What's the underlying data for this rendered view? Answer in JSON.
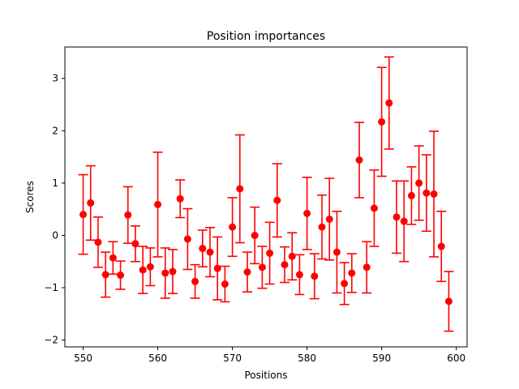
{
  "chart_data": {
    "type": "scatter",
    "title": "Position importances",
    "xlabel": "Positions",
    "ylabel": "Scores",
    "xlim": [
      547.55,
      601.45
    ],
    "ylim": [
      -2.13,
      3.6
    ],
    "x_ticks": [
      550,
      560,
      570,
      580,
      590,
      600
    ],
    "y_ticks": [
      -2,
      -1,
      0,
      1,
      2,
      3
    ],
    "x_tick_labels": [
      "550",
      "560",
      "570",
      "580",
      "590",
      "600"
    ],
    "y_tick_labels": [
      "−2",
      "−1",
      "0",
      "1",
      "2",
      "3"
    ],
    "grid": false,
    "legend": null,
    "marker_color": "#ff0000",
    "errorbar_color": "#ff0000",
    "points": [
      {
        "x": 550,
        "y": 0.4,
        "err": 0.76
      },
      {
        "x": 551,
        "y": 0.62,
        "err": 0.71
      },
      {
        "x": 552,
        "y": -0.13,
        "err": 0.48
      },
      {
        "x": 553,
        "y": -0.75,
        "err": 0.43
      },
      {
        "x": 554,
        "y": -0.43,
        "err": 0.31
      },
      {
        "x": 555,
        "y": -0.76,
        "err": 0.27
      },
      {
        "x": 556,
        "y": 0.39,
        "err": 0.54
      },
      {
        "x": 557,
        "y": -0.16,
        "err": 0.34
      },
      {
        "x": 558,
        "y": -0.66,
        "err": 0.45
      },
      {
        "x": 559,
        "y": -0.6,
        "err": 0.36
      },
      {
        "x": 560,
        "y": 0.59,
        "err": 1.0
      },
      {
        "x": 561,
        "y": -0.72,
        "err": 0.48
      },
      {
        "x": 562,
        "y": -0.69,
        "err": 0.42
      },
      {
        "x": 563,
        "y": 0.7,
        "err": 0.36
      },
      {
        "x": 564,
        "y": -0.07,
        "err": 0.58
      },
      {
        "x": 565,
        "y": -0.88,
        "err": 0.32
      },
      {
        "x": 566,
        "y": -0.25,
        "err": 0.35
      },
      {
        "x": 567,
        "y": -0.32,
        "err": 0.47
      },
      {
        "x": 568,
        "y": -0.63,
        "err": 0.6
      },
      {
        "x": 569,
        "y": -0.93,
        "err": 0.34
      },
      {
        "x": 570,
        "y": 0.16,
        "err": 0.56
      },
      {
        "x": 571,
        "y": 0.89,
        "err": 1.03
      },
      {
        "x": 572,
        "y": -0.7,
        "err": 0.38
      },
      {
        "x": 573,
        "y": 0.0,
        "err": 0.54
      },
      {
        "x": 574,
        "y": -0.61,
        "err": 0.4
      },
      {
        "x": 575,
        "y": -0.34,
        "err": 0.59
      },
      {
        "x": 576,
        "y": 0.67,
        "err": 0.7
      },
      {
        "x": 577,
        "y": -0.56,
        "err": 0.34
      },
      {
        "x": 578,
        "y": -0.4,
        "err": 0.45
      },
      {
        "x": 579,
        "y": -0.75,
        "err": 0.38
      },
      {
        "x": 580,
        "y": 0.42,
        "err": 0.69
      },
      {
        "x": 581,
        "y": -0.78,
        "err": 0.43
      },
      {
        "x": 582,
        "y": 0.16,
        "err": 0.61
      },
      {
        "x": 583,
        "y": 0.31,
        "err": 0.78
      },
      {
        "x": 584,
        "y": -0.32,
        "err": 0.78
      },
      {
        "x": 585,
        "y": -0.92,
        "err": 0.4
      },
      {
        "x": 586,
        "y": -0.72,
        "err": 0.37
      },
      {
        "x": 587,
        "y": 1.44,
        "err": 0.72
      },
      {
        "x": 588,
        "y": -0.61,
        "err": 0.49
      },
      {
        "x": 589,
        "y": 0.52,
        "err": 0.73
      },
      {
        "x": 590,
        "y": 2.17,
        "err": 1.04
      },
      {
        "x": 591,
        "y": 2.53,
        "err": 0.88
      },
      {
        "x": 592,
        "y": 0.35,
        "err": 0.69
      },
      {
        "x": 593,
        "y": 0.27,
        "err": 0.77
      },
      {
        "x": 594,
        "y": 0.76,
        "err": 0.55
      },
      {
        "x": 595,
        "y": 1.0,
        "err": 0.71
      },
      {
        "x": 596,
        "y": 0.81,
        "err": 0.73
      },
      {
        "x": 597,
        "y": 0.79,
        "err": 1.2
      },
      {
        "x": 598,
        "y": -0.21,
        "err": 0.67
      },
      {
        "x": 599,
        "y": -1.26,
        "err": 0.57
      }
    ]
  }
}
